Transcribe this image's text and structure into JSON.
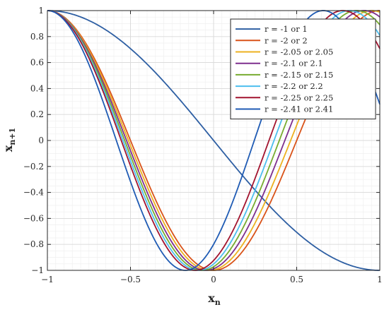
{
  "chart_data": {
    "type": "line",
    "xlabel": "x",
    "xlabel_sub": "n",
    "ylabel": "x",
    "ylabel_sub": "n+1",
    "xlim": [
      -1,
      1
    ],
    "ylim": [
      -1,
      1
    ],
    "xticks": [
      {
        "value": -1,
        "label": "−1"
      },
      {
        "value": -0.5,
        "label": "−0.5"
      },
      {
        "value": 0,
        "label": "0"
      },
      {
        "value": 0.5,
        "label": "0.5"
      },
      {
        "value": 1,
        "label": "1"
      }
    ],
    "yticks": [
      {
        "value": -1,
        "label": "−1"
      },
      {
        "value": -0.8,
        "label": "−0.8"
      },
      {
        "value": -0.6,
        "label": "−0.6"
      },
      {
        "value": -0.4,
        "label": "−0.4"
      },
      {
        "value": -0.2,
        "label": "−0.2"
      },
      {
        "value": 0,
        "label": "0"
      },
      {
        "value": 0.2,
        "label": "0.2"
      },
      {
        "value": 0.4,
        "label": "0.4"
      },
      {
        "value": 0.6,
        "label": "0.6"
      },
      {
        "value": 0.8,
        "label": "0.8"
      },
      {
        "value": 1,
        "label": "1"
      }
    ],
    "grid": true,
    "minor_grid": true,
    "legend_position": "top-right",
    "series": [
      {
        "name": "r = -1 or 1",
        "r": 1,
        "color": "#2E5FA3"
      },
      {
        "name": "r = -2 or 2",
        "r": 2,
        "color": "#D95319"
      },
      {
        "name": "r = -2.05 or 2.05",
        "r": 2.05,
        "color": "#EDB120"
      },
      {
        "name": "r = -2.1 or 2.1",
        "r": 2.1,
        "color": "#7E2F8E"
      },
      {
        "name": "r = -2.15 or 2.15",
        "r": 2.15,
        "color": "#77AC30"
      },
      {
        "name": "r = -2.2 or 2.2",
        "r": 2.2,
        "color": "#4DBEEE"
      },
      {
        "name": "r = -2.25 or 2.25",
        "r": 2.25,
        "color": "#A2142F"
      },
      {
        "name": "r = -2.41 or 2.41",
        "r": 2.41,
        "color": "#1F5BB4"
      }
    ]
  }
}
